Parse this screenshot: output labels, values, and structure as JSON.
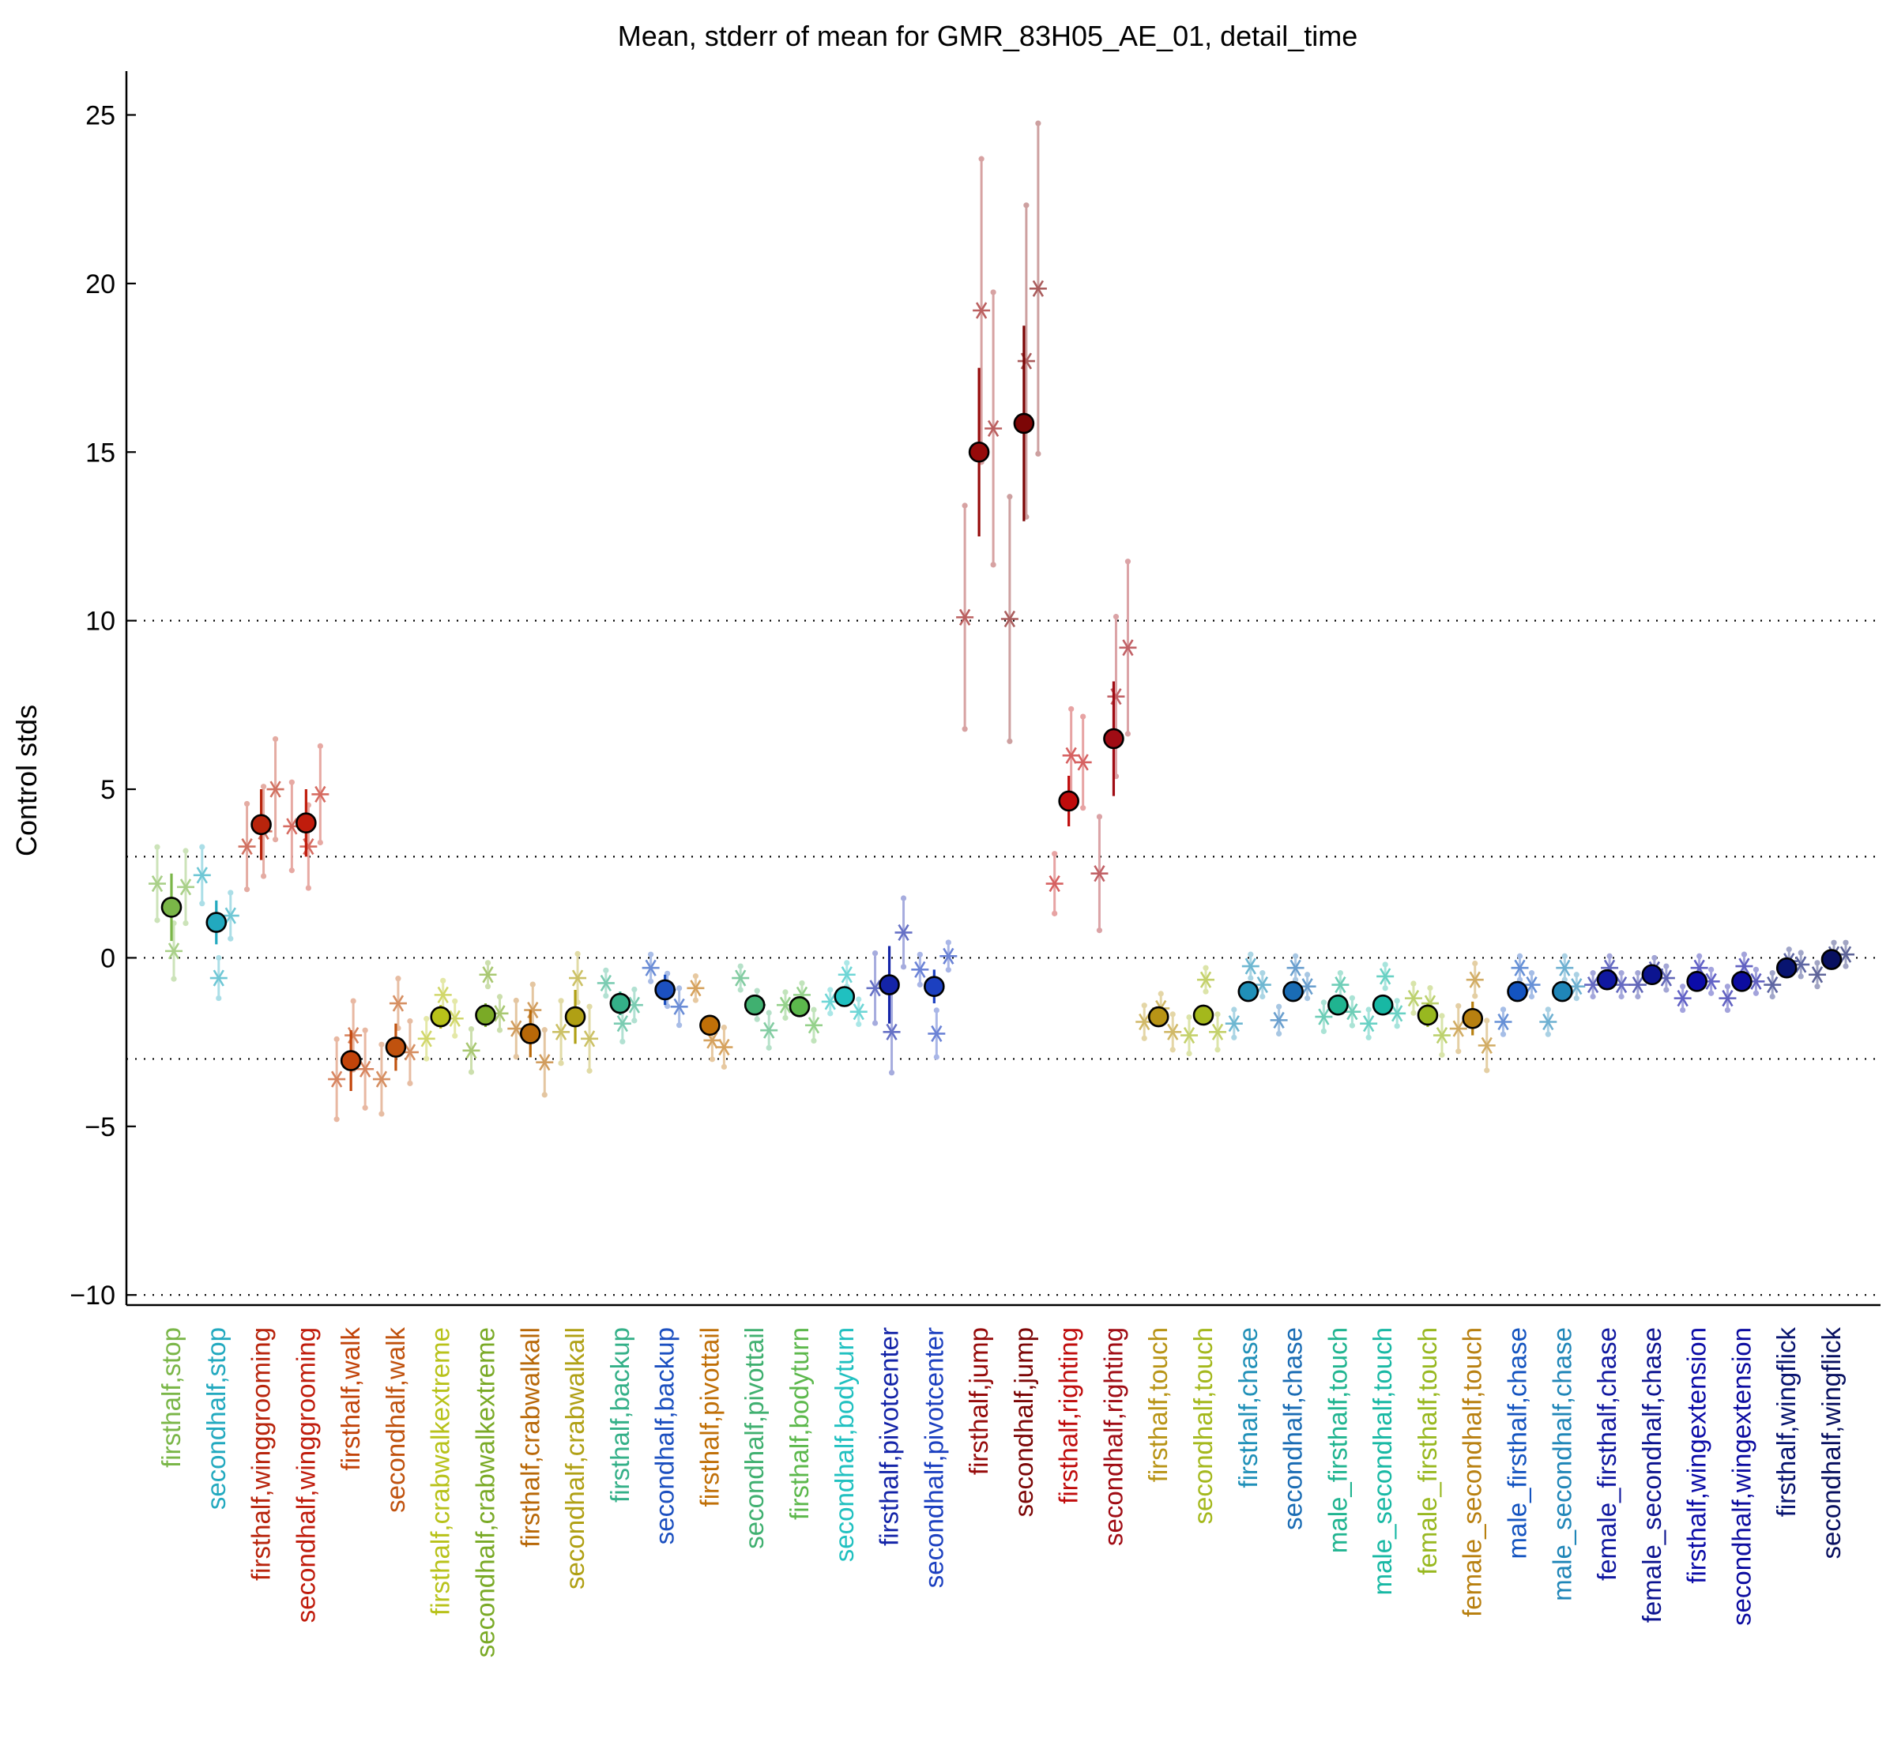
{
  "chart_data": {
    "type": "scatter",
    "title": "Mean, stderr of mean for GMR_83H05_AE_01, detail_time",
    "xlabel": "",
    "ylabel": "Control stds",
    "ylim": [
      -10.3,
      26.3
    ],
    "yticks": [
      -10,
      -5,
      0,
      5,
      10,
      15,
      20,
      25
    ],
    "ytick_labels": [
      "−10",
      "−5",
      "0",
      "5",
      "10",
      "15",
      "20",
      "25"
    ],
    "reference_lines": [
      -10,
      -3,
      0,
      3,
      10
    ],
    "grid": false,
    "legend": "none",
    "categories": [
      "firsthalf,stop",
      "secondhalf,stop",
      "firsthalf,winggrooming",
      "secondhalf,winggrooming",
      "firsthalf,walk",
      "secondhalf,walk",
      "firsthalf,crabwalkextreme",
      "secondhalf,crabwalkextreme",
      "firsthalf,crabwalkall",
      "secondhalf,crabwalkall",
      "firsthalf,backup",
      "secondhalf,backup",
      "firsthalf,pivottail",
      "secondhalf,pivottail",
      "firsthalf,bodyturn",
      "secondhalf,bodyturn",
      "firsthalf,pivotcenter",
      "secondhalf,pivotcenter",
      "firsthalf,jump",
      "secondhalf,jump",
      "firsthalf,righting",
      "secondhalf,righting",
      "firsthalf,touch",
      "secondhalf,touch",
      "firsthalf,chase",
      "secondhalf,chase",
      "male_firsthalf,touch",
      "male_secondhalf,touch",
      "female_firsthalf,touch",
      "female_secondhalf,touch",
      "male_firsthalf,chase",
      "male_secondhalf,chase",
      "female_firsthalf,chase",
      "female_secondhalf,chase",
      "firsthalf,wingextension",
      "secondhalf,wingextension",
      "firsthalf,wingflick",
      "secondhalf,wingflick"
    ],
    "colors": [
      "#7ab648",
      "#22a9bf",
      "#b8240c",
      "#c01c0c",
      "#c2440a",
      "#c0520e",
      "#b8c21a",
      "#7aaa26",
      "#b86808",
      "#b0a014",
      "#34b088",
      "#1c50c0",
      "#c07008",
      "#40b070",
      "#5cb84c",
      "#20c0c0",
      "#1424a8",
      "#1c40c0",
      "#960a0a",
      "#7c0606",
      "#c00c0c",
      "#a00c14",
      "#b89416",
      "#a4b81c",
      "#2090b8",
      "#1a6cb4",
      "#20b490",
      "#18b8a4",
      "#98b820",
      "#b88010",
      "#1454c0",
      "#2086b8",
      "#1018a0",
      "#0c1490",
      "#0c0ca8",
      "#0c0ca0",
      "#081470",
      "#081060"
    ],
    "series": [
      {
        "name": "mean",
        "values": [
          1.5,
          1.05,
          3.95,
          4.0,
          -3.05,
          -2.65,
          -1.75,
          -1.7,
          -2.25,
          -1.75,
          -1.35,
          -0.95,
          -2.0,
          -1.4,
          -1.45,
          -1.15,
          -0.8,
          -0.85,
          15.0,
          15.85,
          4.65,
          6.5,
          -1.75,
          -1.7,
          -1.0,
          -1.0,
          -1.4,
          -1.4,
          -1.7,
          -1.8,
          -1.0,
          -1.0,
          -0.65,
          -0.5,
          -0.7,
          -0.7,
          -0.3,
          -0.05
        ],
        "stderr": [
          1.0,
          0.65,
          1.05,
          1.0,
          0.9,
          0.7,
          0.35,
          0.35,
          0.7,
          0.8,
          0.35,
          0.45,
          0.3,
          0.3,
          0.25,
          0.2,
          1.15,
          0.5,
          2.5,
          2.9,
          0.75,
          1.7,
          0.3,
          0.3,
          0.2,
          0.2,
          0.25,
          0.2,
          0.35,
          0.5,
          0.15,
          0.15,
          0.15,
          0.15,
          0.15,
          0.15,
          0.15,
          0.15
        ]
      },
      {
        "name": "experiments",
        "values": [
          [
            2.2,
            0.2,
            2.1
          ],
          [
            2.45,
            -0.6,
            1.25
          ],
          [
            3.3,
            3.75,
            5.0
          ],
          [
            3.9,
            3.3,
            4.85
          ],
          [
            -3.6,
            -2.3,
            -3.3
          ],
          [
            -3.6,
            -1.35,
            -2.8
          ],
          [
            -2.4,
            -1.1,
            -1.8
          ],
          [
            -2.75,
            -0.5,
            -1.65
          ],
          [
            -2.1,
            -1.55,
            -3.1
          ],
          [
            -2.2,
            -0.6,
            -2.4
          ],
          [
            -0.75,
            -1.95,
            -1.4
          ],
          [
            -0.3,
            -0.95,
            -1.45
          ],
          [
            -0.9,
            -2.45,
            -2.65
          ],
          [
            -0.6,
            -1.4,
            -2.15
          ],
          [
            -1.4,
            -1.1,
            -2.0
          ],
          [
            -1.3,
            -0.5,
            -1.6
          ],
          [
            -0.9,
            -2.2,
            0.75
          ],
          [
            -0.35,
            -2.25,
            0.05
          ],
          [
            10.1,
            19.2,
            15.7
          ],
          [
            10.05,
            17.7,
            19.85
          ],
          [
            2.2,
            6.0,
            5.8
          ],
          [
            2.5,
            7.75,
            9.2
          ],
          [
            -1.9,
            -1.5,
            -2.2
          ],
          [
            -2.3,
            -0.65,
            -2.2
          ],
          [
            -1.95,
            -0.25,
            -0.8
          ],
          [
            -1.85,
            -0.3,
            -0.85
          ],
          [
            -1.75,
            -0.8,
            -1.6
          ],
          [
            -1.95,
            -0.55,
            -1.65
          ],
          [
            -1.2,
            -1.35,
            -2.3
          ],
          [
            -2.1,
            -0.65,
            -2.6
          ],
          [
            -1.9,
            -0.3,
            -0.8
          ],
          [
            -1.9,
            -0.3,
            -0.85
          ],
          [
            -0.8,
            -0.3,
            -0.8
          ],
          [
            -0.8,
            -0.35,
            -0.6
          ],
          [
            -1.2,
            -0.3,
            -0.7
          ],
          [
            -1.2,
            -0.25,
            -0.7
          ],
          [
            -0.8,
            -0.1,
            -0.2
          ],
          [
            -0.5,
            0.1,
            0.1
          ]
        ]
      }
    ]
  }
}
